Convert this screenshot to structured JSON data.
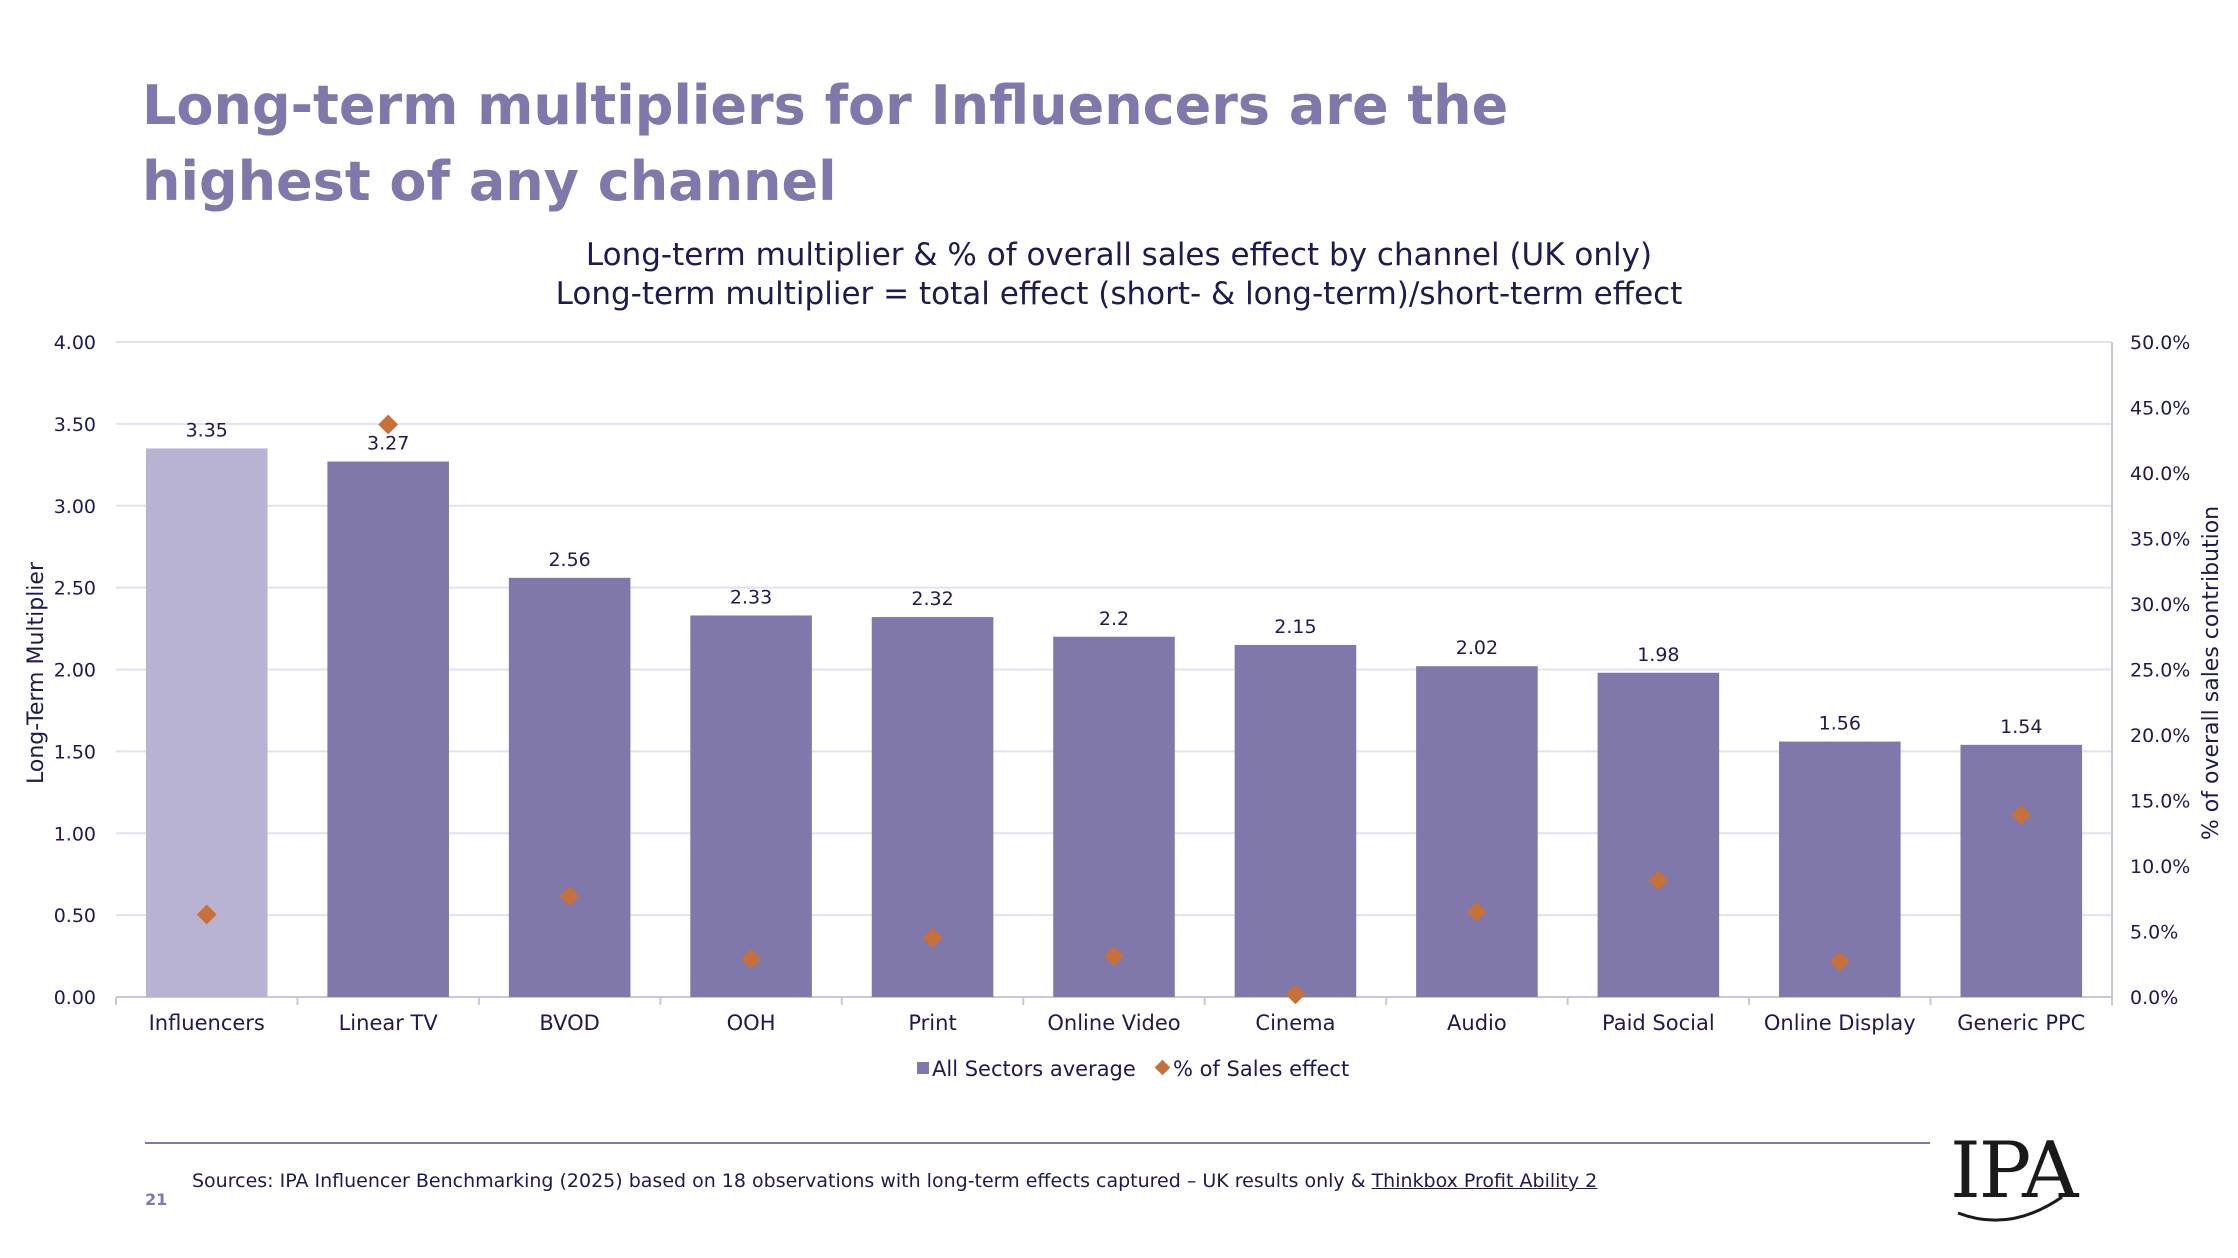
{
  "title": "Long-term multipliers for Influencers are the highest of any channel",
  "subtitle_line1": "Long-term multiplier & % of overall sales effect by channel (UK only)",
  "subtitle_line2": "Long-term multiplier = total effect (short- & long-term)/short-term effect",
  "footer": {
    "sources": "Sources: IPA Influencer Benchmarking (2025) based on 18 observations with long-term effects captured – UK results only & ",
    "link_text": "Thinkbox Profit Ability 2",
    "page_number": "21",
    "logo_text": "IPA"
  },
  "colors": {
    "title": "#8077aa",
    "bar": "#8077aa",
    "bar_highlight": "#b8b3d3",
    "marker": "#c8703a",
    "text": "#1d1a4e",
    "grid": "#e3e1ee"
  },
  "chart_data": {
    "type": "bar",
    "categories": [
      "Influencers",
      "Linear TV",
      "BVOD",
      "OOH",
      "Print",
      "Online Video",
      "Cinema",
      "Audio",
      "Paid Social",
      "Online Display",
      "Generic PPC"
    ],
    "series": [
      {
        "name": "All Sectors average",
        "type": "bar",
        "axis": "left",
        "values": [
          3.35,
          3.27,
          2.56,
          2.33,
          2.32,
          2.2,
          2.15,
          2.02,
          1.98,
          1.56,
          1.54
        ],
        "labels": [
          "3.35",
          "3.27",
          "2.56",
          "2.33",
          "2.32",
          "2.2",
          "2.15",
          "2.02",
          "1.98",
          "1.56",
          "1.54"
        ]
      },
      {
        "name": "% of Sales effect",
        "type": "scatter",
        "axis": "right",
        "values": [
          6.3,
          43.7,
          7.7,
          2.9,
          4.5,
          3.1,
          0.2,
          6.5,
          8.9,
          2.7,
          13.9
        ]
      }
    ],
    "ylabel": "Long-Term Multiplier",
    "y2label": "% of overall sales contribution",
    "ylim": [
      0,
      4
    ],
    "y2lim": [
      0,
      50
    ],
    "yticks": [
      "0.00",
      "0.50",
      "1.00",
      "1.50",
      "2.00",
      "2.50",
      "3.00",
      "3.50",
      "4.00"
    ],
    "y2ticks": [
      "0.0%",
      "5.0%",
      "10.0%",
      "15.0%",
      "20.0%",
      "25.0%",
      "30.0%",
      "35.0%",
      "40.0%",
      "45.0%",
      "50.0%"
    ],
    "grid": true,
    "legend": "bottom"
  }
}
